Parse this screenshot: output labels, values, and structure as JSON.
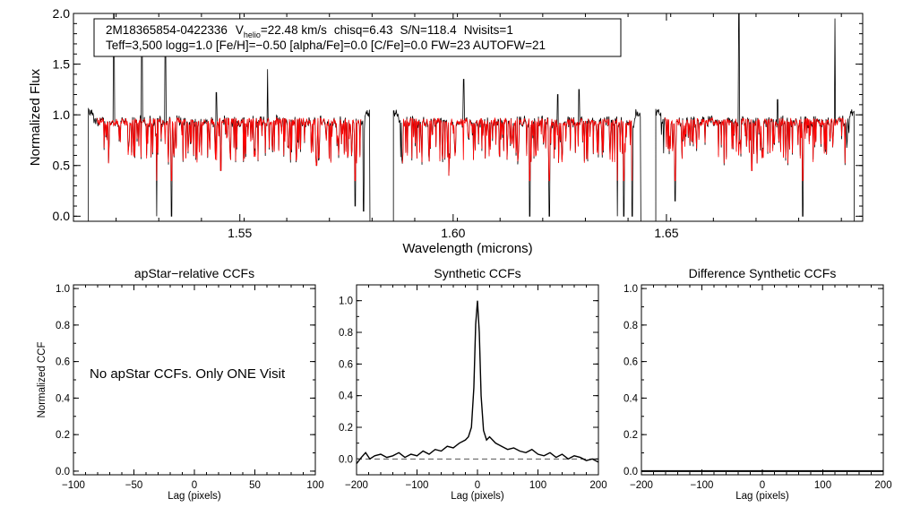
{
  "spectrum": {
    "star_id": "2M18365854-0422336",
    "vhelio_label": "V",
    "vhelio_sub": "helio",
    "vhelio_value": "=22.48 km/s",
    "chisq": "chisq=6.43",
    "sn": "S/N=118.4",
    "nvisits": "Nvisits=1",
    "params_line": "Teff=3,500 logg=1.0 [Fe/H]=−0.50 [alpha/Fe]=0.0 [C/Fe]=0.0 FW=23 AUTOFW=21"
  },
  "ccf_note": "No apStar CCFs.  Only ONE Visit",
  "colors": {
    "observed": "#000000",
    "model": "#ff0000",
    "axes": "#000000"
  },
  "chart_data": [
    {
      "id": "spectrum",
      "type": "line",
      "title": "",
      "xlabel": "Wavelength (microns)",
      "ylabel": "Normalized Flux",
      "xlim": [
        1.511,
        1.696
      ],
      "ylim": [
        -0.05,
        2.0
      ],
      "x_ticks": [
        1.55,
        1.6,
        1.65
      ],
      "x_tick_labels": [
        "1.55",
        "1.60",
        "1.65"
      ],
      "y_ticks": [
        0.0,
        0.5,
        1.0,
        1.5,
        2.0
      ],
      "y_tick_labels": [
        "0.0",
        "0.5",
        "1.0",
        "1.5",
        "2.0"
      ],
      "chip_ranges": [
        [
          1.5145,
          1.5805
        ],
        [
          1.586,
          1.644
        ],
        [
          1.6475,
          1.694
        ]
      ],
      "continuum_level": 0.97,
      "emission_spikes": [
        [
          1.5205,
          2.0
        ],
        [
          1.527,
          1.9
        ],
        [
          1.5325,
          1.8
        ],
        [
          1.5445,
          1.22
        ],
        [
          1.5565,
          1.45
        ],
        [
          1.568,
          1.22
        ],
        [
          1.6025,
          1.35
        ],
        [
          1.6245,
          1.2
        ],
        [
          1.6295,
          1.25
        ],
        [
          1.667,
          2.0
        ],
        [
          1.676,
          1.15
        ],
        [
          1.6895,
          1.95
        ]
      ],
      "deep_absorptions": [
        [
          1.5305,
          0.0
        ],
        [
          1.534,
          0.0
        ],
        [
          1.5455,
          0.45
        ],
        [
          1.568,
          0.5
        ],
        [
          1.577,
          0.1
        ],
        [
          1.579,
          0.05
        ],
        [
          1.599,
          0.4
        ],
        [
          1.618,
          0.0
        ],
        [
          1.6225,
          0.0
        ],
        [
          1.6385,
          0.0
        ],
        [
          1.64,
          0.0
        ],
        [
          1.642,
          0.0
        ],
        [
          1.652,
          0.15
        ],
        [
          1.682,
          0.0
        ],
        [
          1.67,
          0.45
        ]
      ],
      "series": [
        {
          "name": "observed",
          "color": "#000000"
        },
        {
          "name": "model",
          "color": "#ff0000"
        }
      ]
    },
    {
      "id": "apstar_ccf",
      "type": "line",
      "title": "apStar−relative CCFs",
      "xlabel": "Lag (pixels)",
      "ylabel": "Normalized CCF",
      "xlim": [
        -100,
        100
      ],
      "ylim": [
        -0.02,
        1.02
      ],
      "x_ticks": [
        -100,
        -50,
        0,
        50,
        100
      ],
      "x_tick_labels": [
        "−100",
        "−50",
        "0",
        "50",
        "100"
      ],
      "y_ticks": [
        0.0,
        0.2,
        0.4,
        0.6,
        0.8,
        1.0
      ],
      "y_tick_labels": [
        "0.0",
        "0.2",
        "0.4",
        "0.6",
        "0.8",
        "1.0"
      ],
      "series": []
    },
    {
      "id": "synthetic_ccf",
      "type": "line",
      "title": "Synthetic CCFs",
      "xlabel": "Lag (pixels)",
      "ylabel": "",
      "xlim": [
        -200,
        200
      ],
      "ylim": [
        -0.1,
        1.1
      ],
      "x_ticks": [
        -200,
        -100,
        0,
        100,
        200
      ],
      "x_tick_labels": [
        "−200",
        "−100",
        "0",
        "100",
        "200"
      ],
      "y_ticks": [
        0.0,
        0.2,
        0.4,
        0.6,
        0.8,
        1.0
      ],
      "y_tick_labels": [
        "0.0",
        "0.2",
        "0.4",
        "0.6",
        "0.8",
        "1.0"
      ],
      "zero_line": 0.0,
      "series": [
        {
          "name": "ccf",
          "x": [
            -200,
            -192,
            -185,
            -178,
            -170,
            -160,
            -150,
            -140,
            -130,
            -120,
            -110,
            -100,
            -90,
            -80,
            -70,
            -60,
            -50,
            -40,
            -30,
            -20,
            -15,
            -10,
            -6,
            -3,
            0,
            3,
            6,
            10,
            15,
            20,
            30,
            40,
            50,
            60,
            70,
            80,
            90,
            100,
            110,
            120,
            130,
            140,
            150,
            160,
            170,
            180,
            190,
            200
          ],
          "y": [
            -0.03,
            0.01,
            0.04,
            0.0,
            0.02,
            0.03,
            0.01,
            0.02,
            0.04,
            0.01,
            0.03,
            0.02,
            0.05,
            0.03,
            0.06,
            0.05,
            0.08,
            0.07,
            0.1,
            0.12,
            0.14,
            0.2,
            0.45,
            0.85,
            1.0,
            0.8,
            0.4,
            0.18,
            0.12,
            0.14,
            0.1,
            0.08,
            0.06,
            0.07,
            0.05,
            0.04,
            0.06,
            0.03,
            0.02,
            0.04,
            0.01,
            0.03,
            0.0,
            0.02,
            0.01,
            -0.01,
            0.0,
            -0.02
          ]
        }
      ]
    },
    {
      "id": "difference_ccf",
      "type": "line",
      "title": "Difference Synthetic CCFs",
      "xlabel": "Lag (pixels)",
      "ylabel": "",
      "xlim": [
        -200,
        200
      ],
      "ylim": [
        -0.02,
        1.02
      ],
      "x_ticks": [
        -200,
        -100,
        0,
        100,
        200
      ],
      "x_tick_labels": [
        "−200",
        "−100",
        "0",
        "100",
        "200"
      ],
      "y_ticks": [
        0.0,
        0.2,
        0.4,
        0.6,
        0.8,
        1.0
      ],
      "y_tick_labels": [
        "0.0",
        "0.2",
        "0.4",
        "0.6",
        "0.8",
        "1.0"
      ],
      "series": [
        {
          "name": "difference",
          "x": [
            -200,
            200
          ],
          "y": [
            0.0,
            0.0
          ]
        }
      ]
    }
  ]
}
